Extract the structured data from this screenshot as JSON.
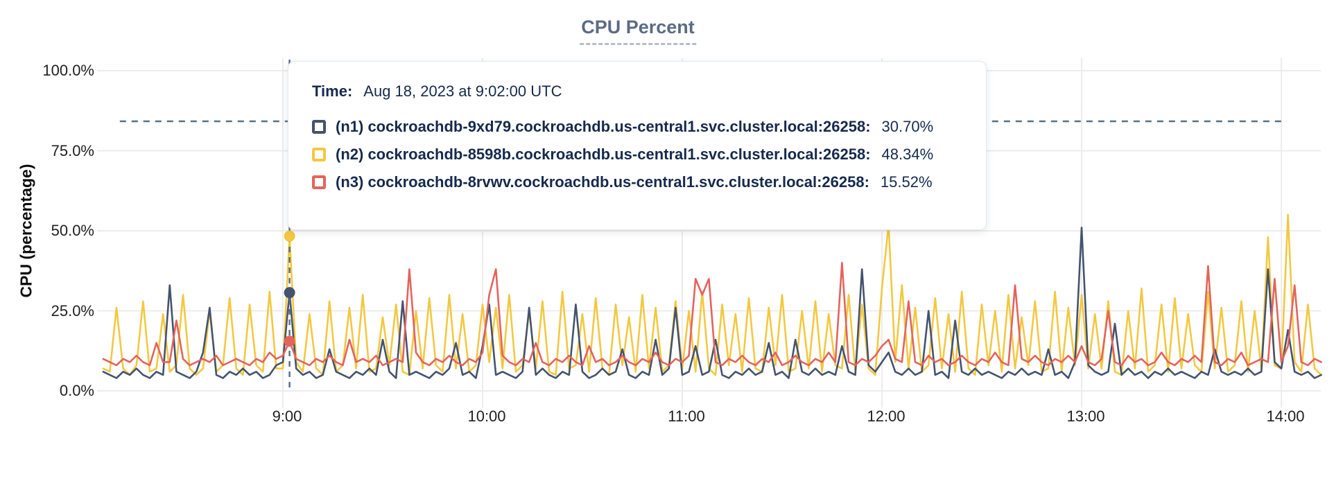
{
  "page": {
    "background": "#ffffff"
  },
  "header": {
    "title": "CPU Percent"
  },
  "axes": {
    "y_label": "CPU (percentage)",
    "y_tick_labels": [
      "0.0%",
      "25.0%",
      "50.0%",
      "75.0%",
      "100.0%"
    ],
    "x_tick_labels": [
      "9:00",
      "10:00",
      "11:00",
      "12:00",
      "13:00",
      "14:00"
    ]
  },
  "tooltip": {
    "time_label": "Time:",
    "time_value": "Aug 18, 2023 at 9:02:00 UTC",
    "rows": [
      {
        "name": "(n1) cockroachdb-9xd79.cockroachdb.us-central1.svc.cluster.local:26258:",
        "value": "30.70%",
        "color": "#44536e"
      },
      {
        "name": "(n2) cockroachdb-8598b.cockroachdb.us-central1.svc.cluster.local:26258:",
        "value": "48.34%",
        "color": "#f3c840"
      },
      {
        "name": "(n3) cockroachdb-8rvwv.cockroachdb.us-central1.svc.cluster.local:26258:",
        "value": "15.52%",
        "color": "#e2645c"
      }
    ]
  },
  "colors": {
    "n1": "#44536e",
    "n2": "#f3c840",
    "n3": "#e2645c",
    "gridline": "#ececec",
    "crosshair": "#56708a",
    "threshold_line": "#56708a",
    "title": "#5b6b84",
    "tooltip_text": "#152a4d"
  },
  "chart_data": {
    "type": "line",
    "title": "CPU Percent",
    "xlabel": "",
    "ylabel": "CPU (percentage)",
    "ylim": [
      0,
      100
    ],
    "y_ticks_percent": [
      0,
      25,
      50,
      75,
      100
    ],
    "x_tick_minutes": [
      540,
      600,
      660,
      720,
      780,
      840
    ],
    "x_tick_labels": [
      "9:00",
      "10:00",
      "11:00",
      "12:00",
      "13:00",
      "14:00"
    ],
    "x_start_minutes": 486,
    "x_step_minutes": 2,
    "grid": true,
    "legend_position": "tooltip-overlay",
    "hover": {
      "minute": 542,
      "time_text": "Aug 18, 2023 at 9:02:00 UTC",
      "values_percent": {
        "n1": 30.7,
        "n2": 48.34,
        "n3": 15.52
      }
    },
    "threshold_line": {
      "percent": 84.2,
      "from_minute": 491,
      "to_minute": 840
    },
    "series": [
      {
        "id": "n1",
        "name": "(n1) cockroachdb-9xd79.cockroachdb.us-central1.svc.cluster.local:26258",
        "color": "#44536e",
        "values": [
          6,
          5,
          4,
          6,
          5,
          7,
          5,
          4,
          6,
          5,
          33,
          6,
          5,
          4,
          6,
          12,
          26,
          5,
          4,
          6,
          5,
          7,
          5,
          6,
          4,
          5,
          8,
          9,
          30.7,
          7,
          5,
          6,
          4,
          5,
          13,
          6,
          5,
          4,
          6,
          5,
          7,
          5,
          16,
          6,
          4,
          28,
          5,
          6,
          5,
          4,
          6,
          5,
          7,
          15,
          5,
          6,
          4,
          14,
          27,
          5,
          6,
          5,
          4,
          6,
          26,
          5,
          7,
          5,
          4,
          6,
          5,
          27,
          6,
          4,
          5,
          7,
          5,
          6,
          13,
          5,
          4,
          6,
          5,
          16,
          5,
          7,
          26,
          5,
          6,
          14,
          5,
          6,
          16,
          5,
          4,
          6,
          5,
          7,
          5,
          6,
          15,
          5,
          6,
          4,
          16,
          6,
          5,
          7,
          5,
          6,
          5,
          14,
          6,
          5,
          38,
          8,
          6,
          9,
          12,
          6,
          5,
          7,
          5,
          6,
          25,
          5,
          6,
          4,
          22,
          6,
          5,
          7,
          5,
          6,
          5,
          4,
          6,
          5,
          7,
          5,
          6,
          5,
          13,
          5,
          6,
          4,
          9,
          51,
          8,
          6,
          5,
          6,
          21,
          5,
          7,
          5,
          6,
          4,
          6,
          5,
          7,
          5,
          6,
          5,
          4,
          6,
          5,
          13,
          6,
          5,
          6,
          5,
          7,
          5,
          6,
          38,
          9,
          7,
          19,
          6,
          5,
          6,
          4,
          5
        ]
      },
      {
        "id": "n2",
        "name": "(n2) cockroachdb-8598b.cockroachdb.us-central1.svc.cluster.local:26258",
        "color": "#f3c840",
        "values": [
          7,
          6,
          26,
          7,
          5,
          8,
          28,
          6,
          7,
          24,
          6,
          8,
          30,
          7,
          5,
          7,
          25,
          6,
          8,
          29,
          7,
          5,
          27,
          8,
          6,
          31,
          7,
          7,
          48.3,
          9,
          6,
          24,
          7,
          5,
          28,
          6,
          8,
          26,
          7,
          30,
          6,
          7,
          23,
          8,
          27,
          6,
          5,
          25,
          7,
          29,
          8,
          6,
          30,
          7,
          24,
          6,
          8,
          27,
          9,
          26,
          7,
          30,
          6,
          8,
          25,
          7,
          28,
          6,
          5,
          31,
          7,
          8,
          24,
          6,
          29,
          7,
          5,
          27,
          8,
          23,
          6,
          30,
          7,
          26,
          6,
          8,
          28,
          7,
          25,
          6,
          31,
          7,
          5,
          27,
          8,
          24,
          6,
          29,
          7,
          6,
          26,
          8,
          30,
          6,
          7,
          25,
          7,
          28,
          6,
          24,
          8,
          7,
          30,
          6,
          27,
          7,
          5,
          32,
          52,
          9,
          33,
          7,
          26,
          6,
          8,
          29,
          7,
          24,
          6,
          31,
          7,
          5,
          27,
          8,
          25,
          6,
          30,
          7,
          23,
          8,
          28,
          6,
          7,
          31,
          6,
          26,
          8,
          30,
          7,
          24,
          7,
          28,
          6,
          5,
          25,
          7,
          32,
          6,
          8,
          27,
          6,
          29,
          7,
          24,
          8,
          6,
          31,
          7,
          26,
          6,
          8,
          28,
          6,
          25,
          7,
          48,
          8,
          7,
          55,
          9,
          6,
          27,
          7,
          5
        ]
      },
      {
        "id": "n3",
        "name": "(n3) cockroachdb-8rvwv.cockroachdb.us-central1.svc.cluster.local:26258",
        "color": "#e2645c",
        "values": [
          10,
          9,
          8,
          10,
          9,
          11,
          9,
          8,
          15,
          9,
          9,
          22,
          10,
          8,
          9,
          10,
          9,
          11,
          8,
          9,
          10,
          9,
          8,
          10,
          9,
          12,
          10,
          11,
          15.5,
          10,
          9,
          8,
          10,
          9,
          11,
          9,
          8,
          16,
          9,
          10,
          9,
          11,
          8,
          9,
          10,
          9,
          38,
          12,
          9,
          8,
          10,
          9,
          11,
          9,
          8,
          10,
          9,
          12,
          30,
          38,
          11,
          9,
          8,
          10,
          9,
          15,
          9,
          8,
          10,
          9,
          11,
          9,
          8,
          14,
          9,
          10,
          8,
          9,
          11,
          9,
          8,
          10,
          9,
          12,
          9,
          8,
          10,
          9,
          11,
          35,
          30,
          35,
          9,
          8,
          10,
          9,
          11,
          9,
          8,
          10,
          9,
          12,
          8,
          9,
          11,
          9,
          8,
          10,
          9,
          12,
          9,
          40,
          9,
          8,
          10,
          9,
          11,
          14,
          16,
          10,
          9,
          28,
          9,
          8,
          11,
          9,
          10,
          8,
          9,
          11,
          9,
          8,
          10,
          9,
          12,
          9,
          8,
          33,
          10,
          9,
          11,
          9,
          8,
          10,
          9,
          11,
          9,
          14,
          9,
          8,
          10,
          25,
          9,
          8,
          11,
          9,
          10,
          8,
          9,
          12,
          9,
          8,
          10,
          9,
          11,
          9,
          39,
          9,
          8,
          10,
          9,
          12,
          8,
          9,
          10,
          9,
          35,
          9,
          14,
          33,
          9,
          8,
          10,
          9
        ]
      }
    ]
  }
}
